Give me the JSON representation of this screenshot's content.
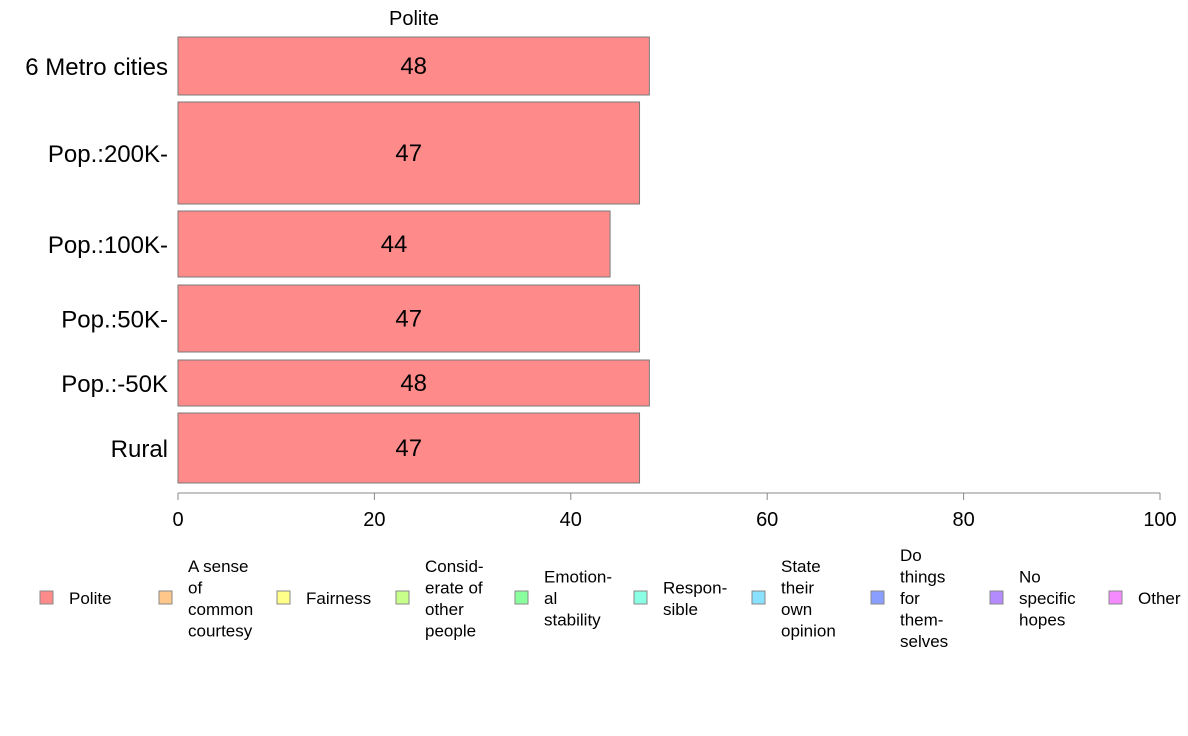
{
  "chart_data": {
    "type": "bar",
    "orientation": "horizontal",
    "title": "Polite",
    "xlim": [
      0,
      100
    ],
    "xticks": [
      "0",
      "20",
      "40",
      "60",
      "80",
      "100"
    ],
    "categories": [
      "6 Metro cities",
      "Pop.:200K-",
      "Pop.:100K-",
      "Pop.:50K-",
      "Pop.:-50K",
      "Rural"
    ],
    "series": [
      {
        "name": "Polite",
        "color": "#ff8a8a",
        "values": [
          48,
          47,
          44,
          47,
          48,
          47
        ]
      }
    ],
    "legend": {
      "placement": "bottom",
      "items": [
        {
          "lines": [
            "Polite"
          ],
          "color": "#ff8a8a"
        },
        {
          "lines": [
            "A sense",
            "of",
            "common",
            "courtesy"
          ],
          "color": "#ffc88a"
        },
        {
          "lines": [
            "Fairness"
          ],
          "color": "#ffff8a"
        },
        {
          "lines": [
            "Consid-",
            "erate of",
            "other",
            "people"
          ],
          "color": "#c8ff8a"
        },
        {
          "lines": [
            "Emotion-",
            "al",
            "stability"
          ],
          "color": "#8aff9e"
        },
        {
          "lines": [
            "Respon-",
            "sible"
          ],
          "color": "#8affe6"
        },
        {
          "lines": [
            "State",
            "their",
            "own",
            "opinion"
          ],
          "color": "#8ae0ff"
        },
        {
          "lines": [
            "Do",
            "things",
            "for",
            "them-",
            "selves"
          ],
          "color": "#8a9eff"
        },
        {
          "lines": [
            "No",
            "specific",
            "hopes"
          ],
          "color": "#b48aff"
        },
        {
          "lines": [
            "Other"
          ],
          "color": "#f58aff"
        }
      ]
    }
  }
}
